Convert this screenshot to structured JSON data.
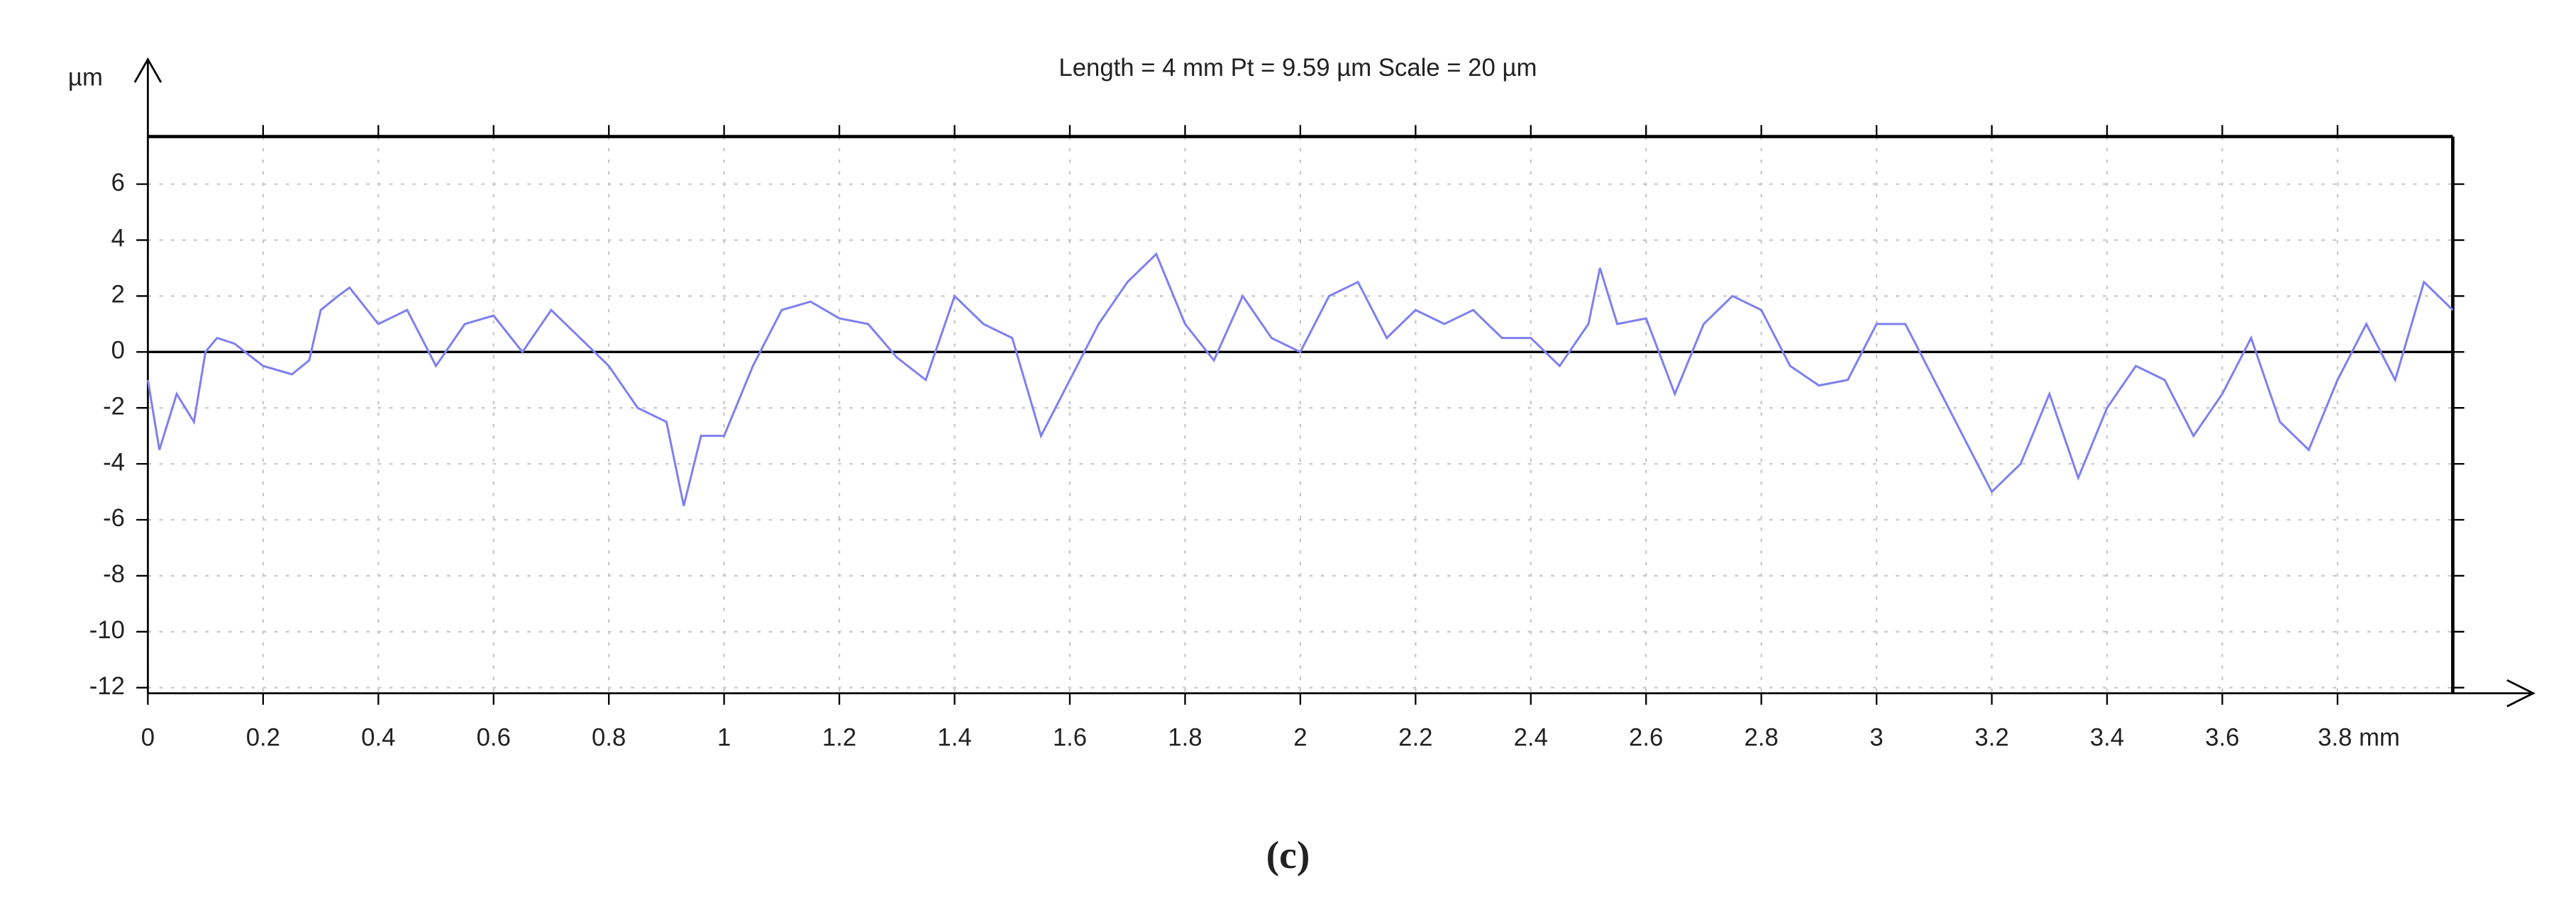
{
  "chart_data": {
    "type": "line",
    "title": "Length = 4 mm  Pt = 9.59 µm  Scale = 20 µm",
    "y_label": "µm",
    "caption": "(c)",
    "x": [
      0,
      0.02,
      0.05,
      0.08,
      0.1,
      0.12,
      0.15,
      0.2,
      0.25,
      0.28,
      0.3,
      0.33,
      0.35,
      0.4,
      0.45,
      0.5,
      0.55,
      0.6,
      0.65,
      0.7,
      0.75,
      0.8,
      0.85,
      0.9,
      0.93,
      0.96,
      1.0,
      1.05,
      1.1,
      1.15,
      1.2,
      1.25,
      1.3,
      1.35,
      1.4,
      1.45,
      1.5,
      1.55,
      1.6,
      1.65,
      1.7,
      1.75,
      1.8,
      1.85,
      1.9,
      1.95,
      2.0,
      2.05,
      2.1,
      2.15,
      2.2,
      2.25,
      2.3,
      2.35,
      2.4,
      2.45,
      2.5,
      2.52,
      2.55,
      2.6,
      2.65,
      2.7,
      2.75,
      2.8,
      2.85,
      2.9,
      2.95,
      3.0,
      3.05,
      3.1,
      3.15,
      3.2,
      3.25,
      3.3,
      3.35,
      3.4,
      3.45,
      3.5,
      3.55,
      3.6,
      3.65,
      3.7,
      3.75,
      3.8,
      3.85,
      3.9,
      3.95,
      4.0
    ],
    "series": [
      {
        "color": "#7f7ff0",
        "values": [
          -1,
          -3.5,
          -1.5,
          -2.5,
          0,
          0.5,
          0.3,
          -0.5,
          -0.8,
          -0.3,
          1.5,
          2,
          2.3,
          1,
          1.5,
          -0.5,
          1,
          1.3,
          0,
          1.5,
          0.5,
          -0.5,
          -2,
          -2.5,
          -5.5,
          -3,
          -3,
          -0.5,
          1.5,
          1.8,
          1.2,
          1,
          -0.2,
          -1,
          2,
          1,
          0.5,
          -3,
          -1,
          1,
          2.5,
          3.5,
          1,
          -0.3,
          2,
          0.5,
          0,
          2,
          2.5,
          0.5,
          1.5,
          1,
          1.5,
          0.5,
          0.5,
          -0.5,
          1,
          3,
          1,
          1.2,
          -1.5,
          1,
          2,
          1.5,
          -0.5,
          -1.2,
          -1,
          1,
          1,
          -1,
          -3,
          -5,
          -4,
          -1.5,
          -4.5,
          -2,
          -0.5,
          -1,
          -3,
          -1.5,
          0.5,
          -2.5,
          -3.5,
          -1,
          1,
          -1,
          2.5,
          1.5
        ]
      }
    ],
    "xlim": [
      0,
      4
    ],
    "ylim": [
      -12.2,
      7.7
    ],
    "xticks": [
      0,
      0.2,
      0.4,
      0.6,
      0.8,
      1,
      1.2,
      1.4,
      1.6,
      1.8,
      2,
      2.2,
      2.4,
      2.6,
      2.8,
      3,
      3.2,
      3.4,
      3.6,
      {
        "value": 3.8,
        "label": "3.8 mm"
      }
    ],
    "yticks": [
      -12,
      -10,
      -8,
      -6,
      -4,
      -2,
      0,
      2,
      4,
      6
    ],
    "grid": true
  }
}
